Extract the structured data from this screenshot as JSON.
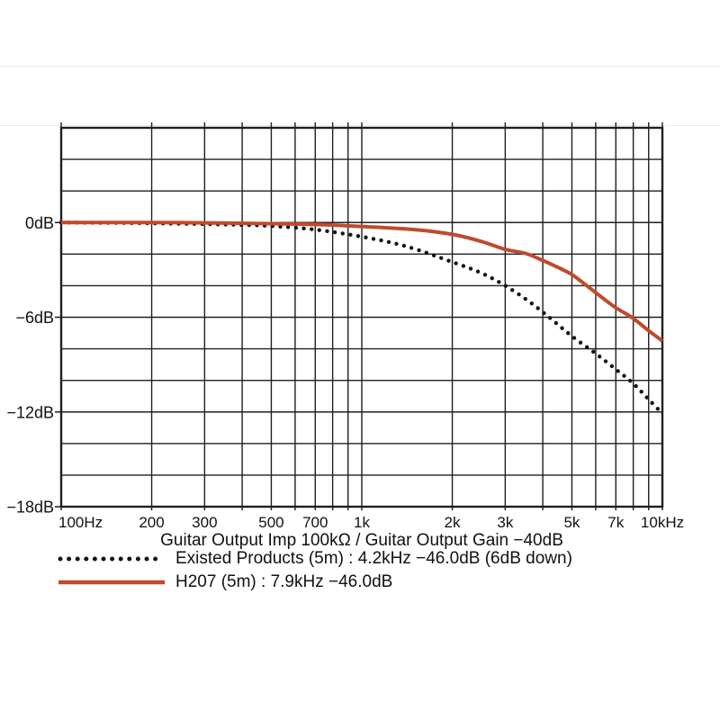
{
  "figure": {
    "background": "#ffffff",
    "text_color": "#111111",
    "grid_color": "#1f1f1f",
    "faint_rule_color": "#ededed"
  },
  "chart_data": {
    "type": "line",
    "title": "",
    "xlabel": "Guitar Output Imp 100kΩ / Guitar Output Gain −40dB",
    "ylabel": "dB",
    "x_scale": "log",
    "x_range_hz": [
      100,
      10000
    ],
    "y_range_db": [
      6,
      -18
    ],
    "grid": true,
    "x_gridlines_hz": [
      100,
      200,
      300,
      400,
      500,
      600,
      700,
      800,
      900,
      1000,
      2000,
      3000,
      4000,
      5000,
      6000,
      7000,
      8000,
      9000,
      10000
    ],
    "y_gridline_step_db": 2,
    "x_tick_labels": [
      {
        "hz": 100,
        "label": "100Hz",
        "anchor": "start"
      },
      {
        "hz": 200,
        "label": "200",
        "anchor": "middle"
      },
      {
        "hz": 300,
        "label": "300",
        "anchor": "middle"
      },
      {
        "hz": 500,
        "label": "500",
        "anchor": "middle"
      },
      {
        "hz": 700,
        "label": "700",
        "anchor": "middle"
      },
      {
        "hz": 1000,
        "label": "1k",
        "anchor": "middle"
      },
      {
        "hz": 2000,
        "label": "2k",
        "anchor": "middle"
      },
      {
        "hz": 3000,
        "label": "3k",
        "anchor": "middle"
      },
      {
        "hz": 5000,
        "label": "5k",
        "anchor": "middle"
      },
      {
        "hz": 7000,
        "label": "7k",
        "anchor": "middle"
      },
      {
        "hz": 10000,
        "label": "10kHz",
        "anchor": "middle"
      }
    ],
    "y_tick_labels": [
      {
        "db": 0,
        "label": "0dB"
      },
      {
        "db": -6,
        "label": "−6dB"
      },
      {
        "db": -12,
        "label": "−12dB"
      },
      {
        "db": -18,
        "label": "−18dB"
      }
    ],
    "series": [
      {
        "name": "Existed Products (5m)",
        "style": "dotted",
        "color": "#141414",
        "points_hz_db": [
          [
            100,
            0
          ],
          [
            150,
            -0.02
          ],
          [
            200,
            -0.05
          ],
          [
            300,
            -0.1
          ],
          [
            400,
            -0.15
          ],
          [
            500,
            -0.22
          ],
          [
            700,
            -0.45
          ],
          [
            1000,
            -0.9
          ],
          [
            1400,
            -1.5
          ],
          [
            2000,
            -2.5
          ],
          [
            2500,
            -3.2
          ],
          [
            3000,
            -4.0
          ],
          [
            3600,
            -5.0
          ],
          [
            4200,
            -6.0
          ],
          [
            5000,
            -7.2
          ],
          [
            6000,
            -8.3
          ],
          [
            7000,
            -9.3
          ],
          [
            8000,
            -10.2
          ],
          [
            9000,
            -11.2
          ],
          [
            10000,
            -12.1
          ]
        ]
      },
      {
        "name": "H207 (5m)",
        "style": "solid",
        "color": "#bf4b2c",
        "points_hz_db": [
          [
            100,
            0
          ],
          [
            200,
            0
          ],
          [
            300,
            -0.02
          ],
          [
            500,
            -0.07
          ],
          [
            700,
            -0.12
          ],
          [
            1000,
            -0.25
          ],
          [
            1500,
            -0.45
          ],
          [
            2000,
            -0.75
          ],
          [
            2500,
            -1.2
          ],
          [
            3000,
            -1.7
          ],
          [
            3500,
            -1.95
          ],
          [
            4000,
            -2.4
          ],
          [
            4500,
            -2.85
          ],
          [
            5000,
            -3.3
          ],
          [
            5600,
            -4.0
          ],
          [
            6300,
            -4.75
          ],
          [
            7000,
            -5.4
          ],
          [
            7900,
            -6.0
          ],
          [
            9000,
            -6.85
          ],
          [
            10000,
            -7.5
          ]
        ]
      }
    ],
    "legend_position": "below-left",
    "legend": [
      {
        "swatch": "dotted",
        "label": "Existed Products (5m) : 4.2kHz −46.0dB (6dB down)"
      },
      {
        "swatch": "solid",
        "label": "H207 (5m) : 7.9kHz −46.0dB"
      }
    ],
    "annotations": {
      "existed_minus6dB_point": "4.2kHz −46.0dB (6dB down)",
      "h207_minus6dB_point": "7.9kHz −46.0dB"
    }
  }
}
